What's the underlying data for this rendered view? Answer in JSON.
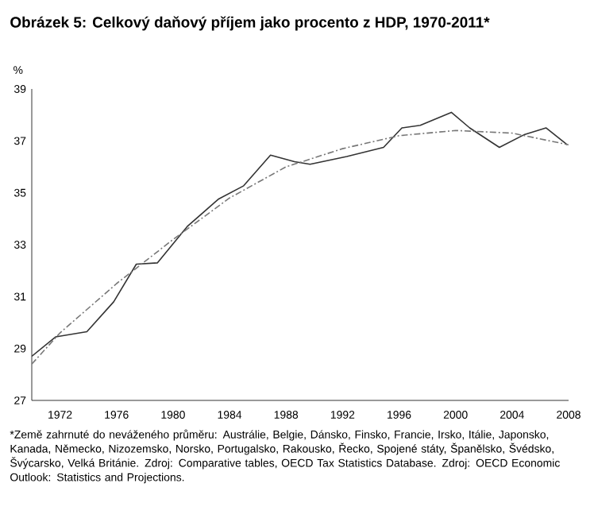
{
  "chart_data": {
    "type": "line",
    "title": "Obrázek 5: Celkový daňový příjem jako procento z HDP, 1970-2011*",
    "ylabel": "%",
    "xlim": [
      1970,
      2008
    ],
    "ylim": [
      27,
      39
    ],
    "xticks": [
      1972,
      1976,
      1980,
      1984,
      1988,
      1992,
      1996,
      2000,
      2004,
      2008
    ],
    "yticks": [
      27,
      29,
      31,
      33,
      35,
      37,
      39
    ],
    "series": [
      {
        "color": "#333333",
        "line_style": "solid",
        "x": [
          1970,
          1971.7,
          1973.9,
          1975.8,
          1977.4,
          1978.9,
          1981,
          1983.2,
          1985,
          1986.9,
          1988.6,
          1989.7,
          1992.3,
          1994.9,
          1996.2,
          1997.5,
          1999.7,
          2001,
          2003.1,
          2004.9,
          2006.4,
          2007.9
        ],
        "values": [
          28.7,
          29.45,
          29.65,
          30.8,
          32.25,
          32.3,
          33.7,
          34.75,
          35.27,
          36.45,
          36.2,
          36.1,
          36.4,
          36.75,
          37.5,
          37.6,
          38.1,
          37.5,
          36.75,
          37.25,
          37.5,
          36.85
        ]
      },
      {
        "color": "#777777",
        "line_style": "dashed",
        "x": [
          1970,
          1972,
          1976,
          1980,
          1984,
          1988,
          1992,
          1996,
          2000,
          2004,
          2008
        ],
        "values": [
          28.4,
          29.6,
          31.5,
          33.2,
          34.8,
          36.0,
          36.7,
          37.2,
          37.4,
          37.3,
          36.85
        ]
      }
    ],
    "annotations": [
      "*Země zahrnuté do neváženého průměru: Austrálie, Belgie, Dánsko, Finsko, Francie, Irsko, Itálie, Japonsko, Kanada, Německo, Nizozemsko, Norsko, Portugalsko, Rakousko, Řecko, Spojené státy, Španělsko, Švédsko, Švýcarsko, Velká Británie. Zdroj: Comparative tables, OECD Tax Statistics Database. Zdroj: OECD Economic Outlook: Statistics and Projections."
    ]
  }
}
